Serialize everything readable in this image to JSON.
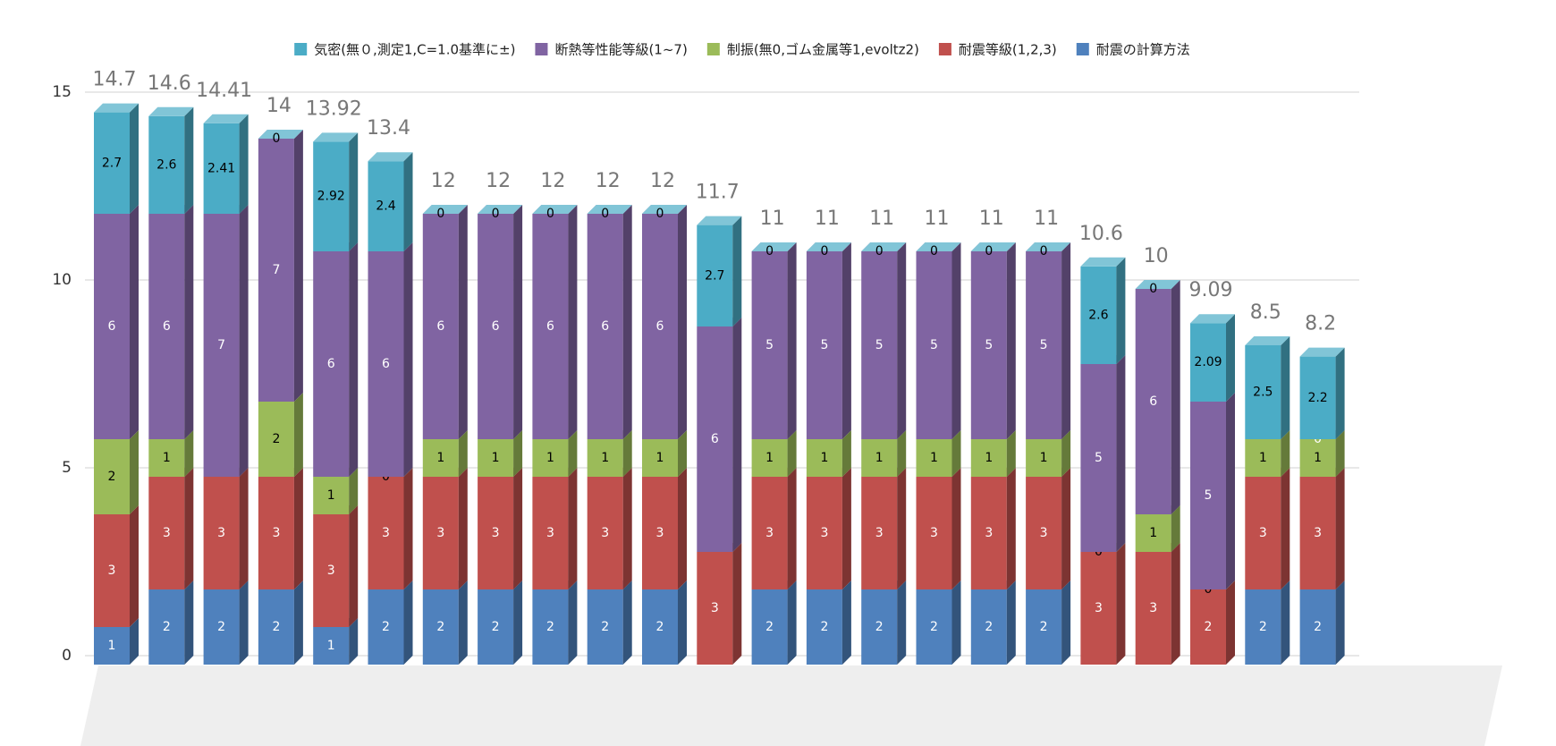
{
  "chart_data": {
    "type": "bar3d_stacked",
    "categories": [
      null,
      null,
      null,
      null,
      null,
      null,
      null,
      null,
      null,
      null,
      null,
      null,
      null,
      null,
      null,
      null,
      null,
      null,
      null,
      null,
      null,
      null,
      null
    ],
    "series": [
      {
        "name": "耐震の計算方法",
        "color": "#4f81bd",
        "values": [
          1,
          2,
          2,
          2,
          1,
          2,
          2,
          2,
          2,
          2,
          2,
          null,
          2,
          2,
          2,
          2,
          2,
          2,
          null,
          null,
          null,
          2,
          2
        ]
      },
      {
        "name": "耐震等級(1,2,3)",
        "color": "#c0504d",
        "values": [
          3,
          3,
          3,
          3,
          3,
          3,
          3,
          3,
          3,
          3,
          3,
          3,
          3,
          3,
          3,
          3,
          3,
          3,
          3,
          3,
          2,
          3,
          3
        ]
      },
      {
        "name": "制振(無0,ゴム金属等1,evoltz2)",
        "color": "#9bbb59",
        "values": [
          2,
          1,
          null,
          2,
          1,
          0,
          1,
          1,
          1,
          1,
          1,
          null,
          1,
          1,
          1,
          1,
          1,
          1,
          0,
          1,
          0,
          1,
          1
        ]
      },
      {
        "name": "断熱等性能等級(1~7)",
        "color": "#8064a2",
        "values": [
          6,
          6,
          7,
          7,
          6,
          6,
          6,
          6,
          6,
          6,
          6,
          6,
          5,
          5,
          5,
          5,
          5,
          5,
          5,
          6,
          5,
          null,
          0
        ]
      },
      {
        "name": "気密(無０,測定1,C=1.0基準に±)",
        "color": "#4bacc6",
        "values": [
          2.7,
          2.6,
          2.41,
          0,
          2.92,
          2.4,
          0,
          0,
          0,
          0,
          0,
          2.7,
          0,
          0,
          0,
          0,
          0,
          0,
          2.6,
          0,
          2.09,
          2.5,
          2.2
        ]
      }
    ],
    "totals": [
      14.7,
      14.6,
      14.41,
      14,
      13.92,
      13.4,
      12,
      12,
      12,
      12,
      12,
      11.7,
      11,
      11,
      11,
      11,
      11,
      11,
      10.6,
      10,
      9.09,
      8.5,
      8.2
    ],
    "ylim": [
      0,
      15
    ],
    "yticks": [
      0,
      5,
      10,
      15
    ],
    "grid": true,
    "legend": "top"
  }
}
